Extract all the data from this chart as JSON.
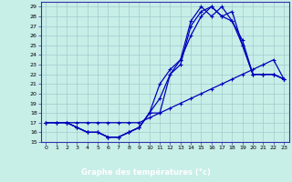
{
  "bg_color": "#c8eee8",
  "grid_color": "#a0cccc",
  "line_color": "#0000bb",
  "xlabel": "Graphe des températures (°c)",
  "xlabel_bg": "#1a1acc",
  "xlim": [
    -0.5,
    23.5
  ],
  "ylim": [
    15,
    29.5
  ],
  "xtick_labels": [
    "0",
    "1",
    "2",
    "3",
    "4",
    "5",
    "6",
    "7",
    "8",
    "9",
    "10",
    "11",
    "12",
    "13",
    "14",
    "15",
    "16",
    "17",
    "18",
    "19",
    "20",
    "21",
    "22",
    "23"
  ],
  "ytick_labels": [
    "15",
    "16",
    "17",
    "18",
    "19",
    "20",
    "21",
    "22",
    "23",
    "24",
    "25",
    "26",
    "27",
    "28",
    "29"
  ],
  "yticks": [
    15,
    16,
    17,
    18,
    19,
    20,
    21,
    22,
    23,
    24,
    25,
    26,
    27,
    28,
    29
  ],
  "s1_x": [
    0,
    1,
    2,
    3,
    4,
    5,
    6,
    7,
    8,
    9,
    10,
    11,
    12,
    13,
    14,
    15,
    16,
    17,
    18,
    19,
    20,
    21,
    22,
    23
  ],
  "s1_y": [
    17.0,
    17.0,
    17.0,
    17.0,
    17.0,
    17.0,
    17.0,
    17.0,
    17.0,
    17.0,
    17.5,
    18.0,
    18.5,
    19.0,
    19.5,
    20.0,
    20.5,
    21.0,
    21.5,
    22.0,
    22.5,
    23.0,
    23.5,
    21.5
  ],
  "s2_x": [
    0,
    1,
    2,
    3,
    4,
    5,
    6,
    7,
    8,
    9,
    10,
    11,
    12,
    13,
    14,
    15,
    16,
    17,
    18,
    19,
    20,
    21,
    22,
    23
  ],
  "s2_y": [
    17.0,
    17.0,
    17.0,
    16.5,
    16.0,
    16.0,
    15.5,
    15.5,
    16.0,
    16.5,
    18.0,
    19.5,
    22.0,
    23.5,
    26.0,
    28.0,
    29.0,
    28.0,
    27.5,
    25.0,
    22.0,
    22.0,
    22.0,
    21.5
  ],
  "s3_x": [
    0,
    1,
    2,
    3,
    4,
    5,
    6,
    7,
    8,
    9,
    10,
    11,
    12,
    13,
    14,
    15,
    16,
    17,
    18,
    19,
    20,
    21,
    22,
    23
  ],
  "s3_y": [
    17.0,
    17.0,
    17.0,
    16.5,
    16.0,
    16.0,
    15.5,
    15.5,
    16.0,
    16.5,
    18.0,
    21.0,
    22.5,
    23.5,
    27.5,
    29.0,
    28.0,
    29.0,
    27.5,
    25.5,
    22.0,
    22.0,
    22.0,
    21.5
  ],
  "s4_x": [
    2,
    3,
    4,
    5,
    6,
    7,
    8,
    9,
    10,
    11,
    12,
    13,
    14,
    15,
    16,
    17,
    18,
    19,
    20,
    21,
    22,
    23
  ],
  "s4_y": [
    17.0,
    16.5,
    16.0,
    16.0,
    15.5,
    15.5,
    16.0,
    16.5,
    18.0,
    18.0,
    22.0,
    23.0,
    27.0,
    28.5,
    29.0,
    28.0,
    28.5,
    25.0,
    22.0,
    22.0,
    22.0,
    21.5
  ]
}
